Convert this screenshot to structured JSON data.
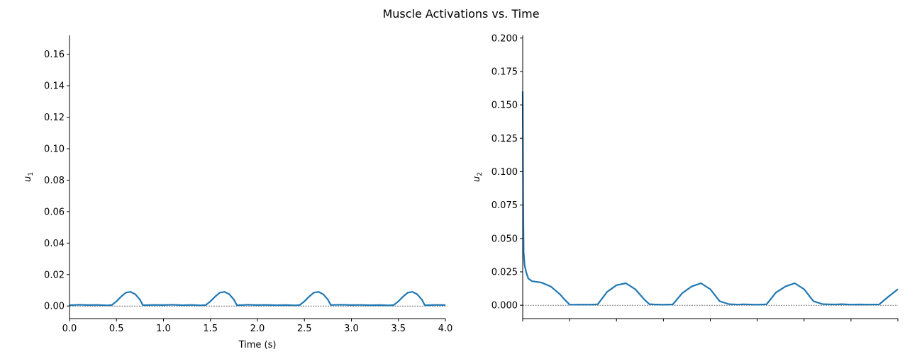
{
  "chart_data": {
    "type": "line",
    "title": "Muscle Activations vs. Time",
    "color": "#1f77b4",
    "panels": [
      {
        "id": "u1",
        "ylabel_base": "u",
        "ylabel_sub": "1",
        "xlabel": "Time (s)",
        "xlim": [
          0,
          4.0
        ],
        "ylim": [
          -0.008,
          0.172
        ],
        "xticks": [
          0.0,
          0.5,
          1.0,
          1.5,
          2.0,
          2.5,
          3.0,
          3.5,
          4.0
        ],
        "xtick_labels": [
          "0.0",
          "0.5",
          "1.0",
          "1.5",
          "2.0",
          "2.5",
          "3.0",
          "3.5",
          "4.0"
        ],
        "yticks": [
          0.0,
          0.02,
          0.04,
          0.06,
          0.08,
          0.1,
          0.12,
          0.14,
          0.16
        ],
        "ytick_labels": [
          "0.00",
          "0.02",
          "0.04",
          "0.06",
          "0.08",
          "0.10",
          "0.12",
          "0.14",
          "0.16"
        ],
        "zero_line": true,
        "series": [
          {
            "name": "u1",
            "x": [
              0.0,
              0.1,
              0.2,
              0.3,
              0.4,
              0.45,
              0.5,
              0.55,
              0.6,
              0.65,
              0.7,
              0.75,
              0.78,
              0.8,
              0.9,
              1.0,
              1.1,
              1.2,
              1.3,
              1.4,
              1.45,
              1.5,
              1.55,
              1.6,
              1.65,
              1.7,
              1.75,
              1.78,
              1.8,
              1.9,
              2.0,
              2.1,
              2.2,
              2.3,
              2.4,
              2.45,
              2.5,
              2.55,
              2.6,
              2.65,
              2.7,
              2.75,
              2.78,
              2.8,
              2.9,
              3.0,
              3.1,
              3.2,
              3.3,
              3.4,
              3.45,
              3.5,
              3.55,
              3.6,
              3.65,
              3.7,
              3.75,
              3.78,
              3.8,
              3.9,
              4.0
            ],
            "y": [
              0.0005,
              0.0008,
              0.0006,
              0.0007,
              0.0004,
              0.0006,
              0.003,
              0.006,
              0.0085,
              0.009,
              0.0075,
              0.004,
              0.0006,
              0.0005,
              0.0007,
              0.0006,
              0.0008,
              0.0005,
              0.0007,
              0.0004,
              0.0006,
              0.003,
              0.006,
              0.0085,
              0.009,
              0.0075,
              0.004,
              0.0006,
              0.0005,
              0.0008,
              0.0006,
              0.0007,
              0.0005,
              0.0006,
              0.0004,
              0.0006,
              0.003,
              0.006,
              0.0085,
              0.009,
              0.0075,
              0.004,
              0.0006,
              0.0007,
              0.0008,
              0.0006,
              0.0007,
              0.0005,
              0.0006,
              0.0004,
              0.0006,
              0.003,
              0.006,
              0.0085,
              0.009,
              0.0075,
              0.004,
              0.0006,
              0.0005,
              0.0007,
              0.0006
            ]
          }
        ]
      },
      {
        "id": "u2",
        "ylabel_base": "u",
        "ylabel_sub": "2",
        "xlabel": "",
        "xlim": [
          0,
          4.0
        ],
        "ylim": [
          -0.01,
          0.202
        ],
        "xticks": [
          0.0,
          0.5,
          1.0,
          1.5,
          2.0,
          2.5,
          3.0,
          3.5,
          4.0
        ],
        "xtick_labels": [],
        "yticks": [
          0.0,
          0.025,
          0.05,
          0.075,
          0.1,
          0.125,
          0.15,
          0.175,
          0.2
        ],
        "ytick_labels": [
          "0.000",
          "0.025",
          "0.050",
          "0.075",
          "0.100",
          "0.125",
          "0.150",
          "0.175",
          "0.200"
        ],
        "zero_line": true,
        "series": [
          {
            "name": "u2",
            "x": [
              0.0,
              0.005,
              0.01,
              0.02,
              0.04,
              0.06,
              0.1,
              0.2,
              0.3,
              0.4,
              0.45,
              0.5,
              0.55,
              0.6,
              0.7,
              0.8,
              0.9,
              1.0,
              1.1,
              1.2,
              1.3,
              1.35,
              1.4,
              1.5,
              1.6,
              1.7,
              1.8,
              1.9,
              2.0,
              2.1,
              2.2,
              2.3,
              2.35,
              2.4,
              2.5,
              2.6,
              2.7,
              2.8,
              2.9,
              3.0,
              3.1,
              3.2,
              3.3,
              3.35,
              3.4,
              3.5,
              3.6,
              3.7,
              3.8,
              3.9,
              4.0
            ],
            "y": [
              0.16,
              0.08,
              0.04,
              0.03,
              0.024,
              0.02,
              0.018,
              0.017,
              0.014,
              0.008,
              0.004,
              0.0005,
              0.0004,
              0.0005,
              0.0004,
              0.0007,
              0.01,
              0.015,
              0.0165,
              0.012,
              0.004,
              0.0008,
              0.0006,
              0.0004,
              0.0006,
              0.009,
              0.014,
              0.0165,
              0.012,
              0.003,
              0.0008,
              0.0005,
              0.0007,
              0.0006,
              0.0004,
              0.0007,
              0.0095,
              0.014,
              0.0165,
              0.012,
              0.003,
              0.0008,
              0.0006,
              0.0006,
              0.0008,
              0.0005,
              0.0006,
              0.0005,
              0.0006,
              0.0065,
              0.012
            ]
          }
        ]
      }
    ]
  }
}
